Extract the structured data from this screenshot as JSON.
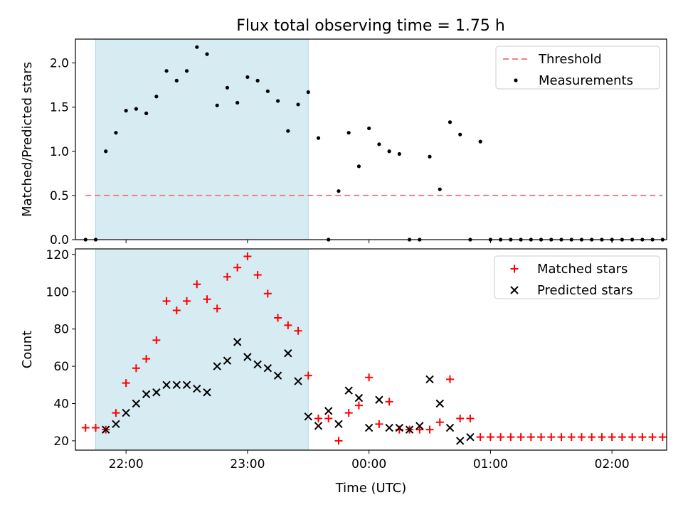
{
  "title": "Flux total observing time = 1.75 h",
  "colors": {
    "threshold": "#f08080",
    "measurement": "#000000",
    "matched": "#ff0000",
    "predicted": "#000000",
    "shade": "#add8e6"
  },
  "chart_data": [
    {
      "type": "scatter",
      "ylabel": "Matched/Predicted stars",
      "xlabel": "",
      "xlim": [
        "21:35",
        "02:27"
      ],
      "ylim": [
        0,
        2.27
      ],
      "yticks": [
        0.0,
        0.5,
        1.0,
        1.5,
        2.0
      ],
      "ytick_labels": [
        "0.0",
        "0.5",
        "1.0",
        "1.5",
        "2.0"
      ],
      "xticks": [
        "22:00",
        "23:00",
        "00:00",
        "01:00",
        "02:00"
      ],
      "shaded_span": [
        "21:45",
        "23:30"
      ],
      "legend": {
        "placement": "top-right",
        "entries": [
          "Threshold",
          "Measurements"
        ]
      },
      "series": [
        {
          "name": "Threshold",
          "style": "dashed-line",
          "x": [
            "21:40",
            "02:25"
          ],
          "values": [
            0.5,
            0.5
          ]
        },
        {
          "name": "Measurements",
          "style": "dot",
          "x": [
            "21:40",
            "21:45",
            "21:50",
            "21:55",
            "22:00",
            "22:05",
            "22:10",
            "22:15",
            "22:20",
            "22:25",
            "22:30",
            "22:35",
            "22:40",
            "22:45",
            "22:50",
            "22:55",
            "23:00",
            "23:05",
            "23:10",
            "23:15",
            "23:20",
            "23:25",
            "23:30",
            "23:35",
            "23:40",
            "23:45",
            "23:50",
            "23:55",
            "00:00",
            "00:05",
            "00:10",
            "00:15",
            "00:20",
            "00:25",
            "00:30",
            "00:35",
            "00:40",
            "00:45",
            "00:50",
            "00:55",
            "01:00",
            "01:05",
            "01:10",
            "01:15",
            "01:20",
            "01:25",
            "01:30",
            "01:35",
            "01:40",
            "01:45",
            "01:50",
            "01:55",
            "02:00",
            "02:05",
            "02:10",
            "02:15",
            "02:20",
            "02:25"
          ],
          "values": [
            0,
            0,
            1.0,
            1.21,
            1.46,
            1.48,
            1.43,
            1.62,
            1.91,
            1.8,
            1.91,
            2.18,
            2.1,
            1.52,
            1.72,
            1.55,
            1.84,
            1.8,
            1.68,
            1.57,
            1.23,
            1.53,
            1.67,
            1.15,
            0,
            0.55,
            1.21,
            0.83,
            1.26,
            1.08,
            1.0,
            0.97,
            0,
            0,
            0.94,
            0.57,
            1.33,
            1.19,
            0,
            1.11,
            0,
            0,
            0,
            0,
            0,
            0,
            0,
            0,
            0,
            0,
            0,
            0,
            0,
            0,
            0,
            0,
            0,
            0
          ]
        }
      ]
    },
    {
      "type": "scatter",
      "ylabel": "Count",
      "xlabel": "Time (UTC)",
      "xlim": [
        "21:35",
        "02:27"
      ],
      "ylim": [
        15,
        123
      ],
      "yticks": [
        20,
        40,
        60,
        80,
        100,
        120
      ],
      "ytick_labels": [
        "20",
        "40",
        "60",
        "80",
        "100",
        "120"
      ],
      "xticks": [
        "22:00",
        "23:00",
        "00:00",
        "01:00",
        "02:00"
      ],
      "xtick_labels": [
        "22:00",
        "23:00",
        "00:00",
        "01:00",
        "02:00"
      ],
      "shaded_span": [
        "21:45",
        "23:30"
      ],
      "legend": {
        "placement": "top-right",
        "entries": [
          "Matched stars",
          "Predicted stars"
        ]
      },
      "series": [
        {
          "name": "Matched stars",
          "marker": "plus",
          "x": [
            "21:40",
            "21:45",
            "21:50",
            "21:55",
            "22:00",
            "22:05",
            "22:10",
            "22:15",
            "22:20",
            "22:25",
            "22:30",
            "22:35",
            "22:40",
            "22:45",
            "22:50",
            "22:55",
            "23:00",
            "23:05",
            "23:10",
            "23:15",
            "23:20",
            "23:25",
            "23:30",
            "23:35",
            "23:40",
            "23:45",
            "23:50",
            "23:55",
            "00:00",
            "00:05",
            "00:10",
            "00:15",
            "00:20",
            "00:25",
            "00:30",
            "00:35",
            "00:40",
            "00:45",
            "00:50",
            "00:55",
            "01:00",
            "01:05",
            "01:10",
            "01:15",
            "01:20",
            "01:25",
            "01:30",
            "01:35",
            "01:40",
            "01:45",
            "01:50",
            "01:55",
            "02:00",
            "02:05",
            "02:10",
            "02:15",
            "02:20",
            "02:25"
          ],
          "values": [
            27,
            27,
            26,
            35,
            51,
            59,
            64,
            74,
            95,
            90,
            95,
            104,
            96,
            91,
            108,
            113,
            119,
            109,
            99,
            86,
            82,
            79,
            55,
            32,
            32,
            20,
            35,
            39,
            54,
            29,
            41,
            26,
            26,
            26,
            26,
            30,
            53,
            32,
            32,
            22,
            22,
            22,
            22,
            22,
            22,
            22,
            22,
            22,
            22,
            22,
            22,
            22,
            22,
            22,
            22,
            22,
            22,
            22
          ]
        },
        {
          "name": "Predicted stars",
          "marker": "x",
          "x": [
            "21:50",
            "21:55",
            "22:00",
            "22:05",
            "22:10",
            "22:15",
            "22:20",
            "22:25",
            "22:30",
            "22:35",
            "22:40",
            "22:45",
            "22:50",
            "22:55",
            "23:00",
            "23:05",
            "23:10",
            "23:15",
            "23:20",
            "23:25",
            "23:30",
            "23:35",
            "23:40",
            "23:45",
            "23:50",
            "23:55",
            "00:00",
            "00:05",
            "00:10",
            "00:15",
            "00:20",
            "00:25",
            "00:30",
            "00:35",
            "00:40",
            "00:45",
            "00:50"
          ],
          "values": [
            26,
            29,
            35,
            40,
            45,
            46,
            50,
            50,
            50,
            48,
            46,
            60,
            63,
            73,
            65,
            61,
            59,
            55,
            67,
            52,
            33,
            28,
            36,
            29,
            47,
            43,
            27,
            42,
            27,
            27,
            26,
            28,
            53,
            40,
            27,
            20,
            22
          ]
        }
      ]
    }
  ]
}
